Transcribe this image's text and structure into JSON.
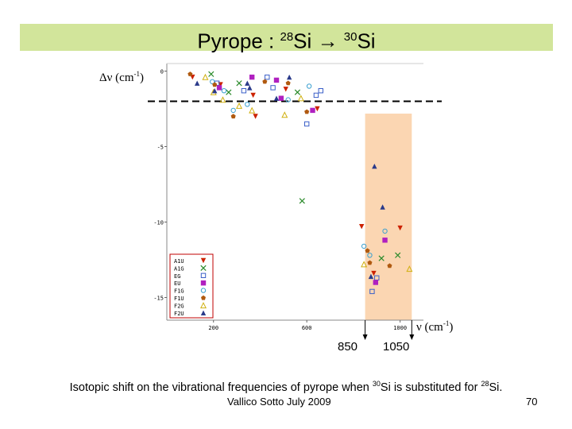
{
  "slide": {
    "title_main": "Pyrope : ",
    "title_sup1": "28",
    "title_si1": "Si → ",
    "title_sup2": "30",
    "title_si2": "Si",
    "y_label_main": "Δν (cm",
    "y_label_sup": "-1",
    "y_label_end": ")",
    "x_label_main": "ν (cm",
    "x_label_sup": "-1",
    "x_label_end": ")",
    "marker_low": "850",
    "marker_high": "1050",
    "caption_a": "Isotopic shift  on the vibrational frequencies  of pyrope when ",
    "caption_sup1": "30",
    "caption_b": "Si is substituted for ",
    "caption_sup2": "28",
    "caption_c": "Si.",
    "footer": "Vallico Sotto  July 2009",
    "page_number": "70"
  },
  "colors": {
    "title_bar": "#d2e59b",
    "highlight_band": "#fbd6b2",
    "dashed_line": "#000000"
  },
  "chart_data": {
    "type": "scatter",
    "x_ticks": [
      200,
      600,
      1000
    ],
    "y_ticks": [
      0,
      -5,
      -10,
      -15
    ],
    "xlim": [
      0,
      1100
    ],
    "ylim": [
      -16.5,
      0.5
    ],
    "highlight_range": [
      850,
      1050
    ],
    "reference_line_y": -2.0,
    "legend_position": "bottom-left",
    "series": [
      {
        "name": "A1U",
        "marker": "triangle-down",
        "color": "#cc2200",
        "points": [
          [
            110,
            -0.4
          ],
          [
            230,
            -0.9
          ],
          [
            370,
            -1.6
          ],
          [
            380,
            -3.0
          ],
          [
            510,
            -1.2
          ],
          [
            645,
            -2.5
          ],
          [
            835,
            -10.3
          ],
          [
            887,
            -13.4
          ],
          [
            1000,
            -10.4
          ]
        ]
      },
      {
        "name": "A1G",
        "marker": "x",
        "color": "#2a8a2a",
        "points": [
          [
            190,
            -0.2
          ],
          [
            310,
            -0.8
          ],
          [
            265,
            -1.4
          ],
          [
            560,
            -1.4
          ],
          [
            580,
            -8.6
          ],
          [
            920,
            -12.4
          ],
          [
            990,
            -12.2
          ]
        ]
      },
      {
        "name": "EG",
        "marker": "square-open",
        "color": "#3a5fc8",
        "points": [
          [
            215,
            -0.8
          ],
          [
            330,
            -1.3
          ],
          [
            430,
            -0.4
          ],
          [
            455,
            -1.1
          ],
          [
            640,
            -1.6
          ],
          [
            660,
            -1.3
          ],
          [
            600,
            -3.5
          ],
          [
            900,
            -13.7
          ],
          [
            880,
            -14.6
          ]
        ]
      },
      {
        "name": "EU",
        "marker": "square",
        "color": "#b020c0",
        "points": [
          [
            225,
            -1.1
          ],
          [
            365,
            -0.4
          ],
          [
            470,
            -0.6
          ],
          [
            490,
            -1.8
          ],
          [
            625,
            -2.6
          ],
          [
            895,
            -14.0
          ],
          [
            935,
            -11.2
          ]
        ]
      },
      {
        "name": "F1G",
        "marker": "circle-open",
        "color": "#3aa0d0",
        "points": [
          [
            195,
            -0.7
          ],
          [
            245,
            -1.3
          ],
          [
            285,
            -2.6
          ],
          [
            345,
            -2.2
          ],
          [
            520,
            -1.9
          ],
          [
            610,
            -1.0
          ],
          [
            845,
            -11.6
          ],
          [
            870,
            -12.2
          ],
          [
            935,
            -10.6
          ]
        ]
      },
      {
        "name": "F1U",
        "marker": "pentagon",
        "color": "#b05a10",
        "points": [
          [
            100,
            -0.2
          ],
          [
            205,
            -0.9
          ],
          [
            285,
            -3.0
          ],
          [
            420,
            -0.7
          ],
          [
            520,
            -0.8
          ],
          [
            600,
            -2.7
          ],
          [
            860,
            -11.9
          ],
          [
            870,
            -12.7
          ],
          [
            955,
            -12.9
          ]
        ]
      },
      {
        "name": "F2G",
        "marker": "triangle-open",
        "color": "#d0b010",
        "points": [
          [
            165,
            -0.4
          ],
          [
            200,
            -1.4
          ],
          [
            240,
            -1.9
          ],
          [
            310,
            -2.3
          ],
          [
            365,
            -2.6
          ],
          [
            505,
            -2.9
          ],
          [
            575,
            -1.8
          ],
          [
            845,
            -12.8
          ],
          [
            1040,
            -13.1
          ]
        ]
      },
      {
        "name": "F2U",
        "marker": "triangle",
        "color": "#2a3a8a",
        "points": [
          [
            130,
            -0.8
          ],
          [
            205,
            -1.3
          ],
          [
            345,
            -0.8
          ],
          [
            355,
            -1.1
          ],
          [
            470,
            -1.8
          ],
          [
            525,
            -0.4
          ],
          [
            890,
            -6.3
          ],
          [
            925,
            -9.0
          ],
          [
            875,
            -13.6
          ]
        ]
      }
    ]
  }
}
